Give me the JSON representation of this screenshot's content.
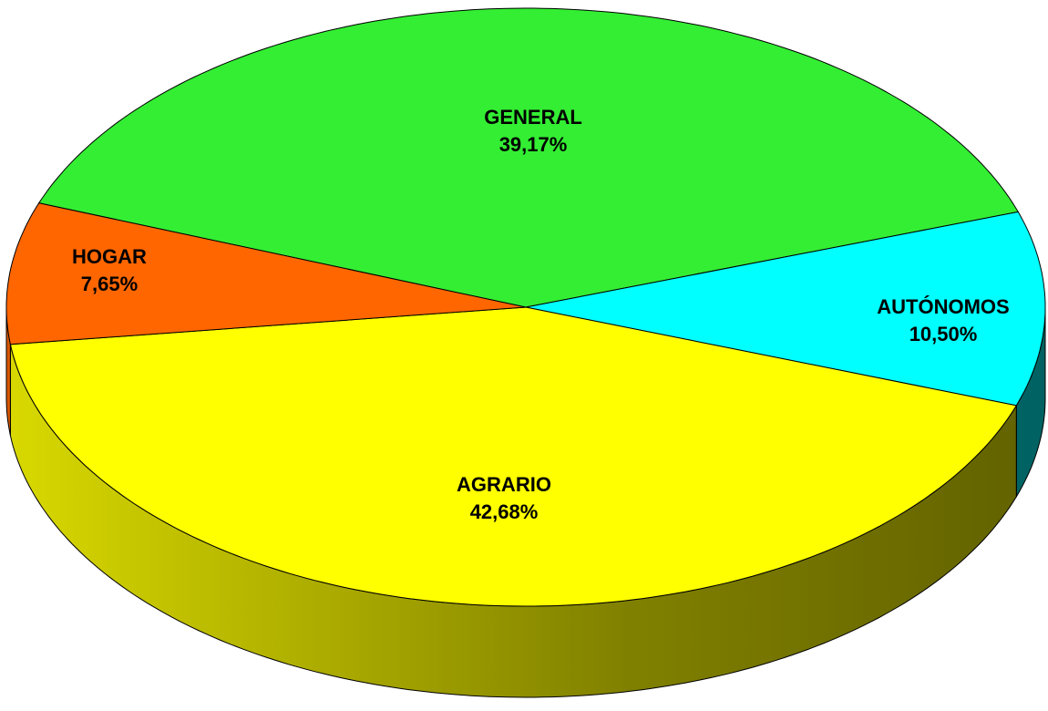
{
  "chart_data": {
    "type": "pie",
    "categories": [
      "GENERAL",
      "AUTÓNOMOS",
      "AGRARIO",
      "HOGAR"
    ],
    "values": [
      39.17,
      10.5,
      42.68,
      7.65
    ],
    "value_labels": [
      "39,17%",
      "10,50%",
      "42,68%",
      "7,65%"
    ],
    "colors": [
      "#33ee33",
      "#00ffff",
      "#ffff00",
      "#ff6600"
    ]
  }
}
